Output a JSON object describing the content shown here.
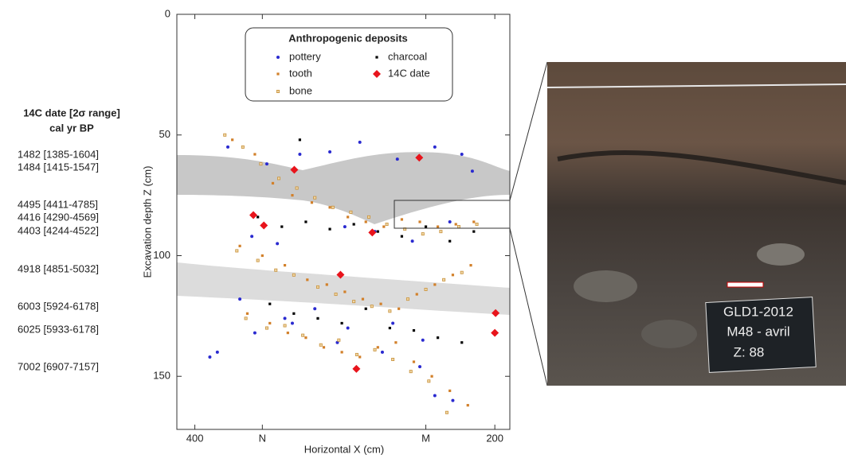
{
  "chart_data": {
    "type": "scatter",
    "legend_title": "Anthropogenic deposits",
    "xlabel": "Horizontal X (cm)",
    "ylabel": "Excavation depth Z (cm)",
    "xlim": [
      412,
      190
    ],
    "ylim": [
      172,
      0
    ],
    "xticks": [
      400,
      {
        "value": 355,
        "label": "N"
      },
      {
        "value": 246,
        "label": "M"
      },
      200
    ],
    "yticks": [
      0,
      50,
      100,
      150
    ],
    "series": [
      {
        "name": "pottery",
        "color": "#2a2ad0",
        "marker": "circle",
        "x": [
          378,
          352,
          330,
          310,
          290,
          265,
          240,
          222,
          215,
          362,
          345,
          300,
          280,
          255,
          230,
          370,
          340,
          320,
          298,
          268,
          248,
          385,
          360,
          335,
          305,
          275,
          250,
          228,
          390,
          240
        ],
        "values": [
          55,
          62,
          58,
          57,
          53,
          60,
          55,
          58,
          65,
          92,
          95,
          88,
          90,
          94,
          86,
          118,
          126,
          122,
          130,
          128,
          135,
          140,
          132,
          128,
          136,
          140,
          146,
          160,
          142,
          158
        ]
      },
      {
        "name": "charcoal",
        "color": "#000000",
        "marker": "square",
        "x": [
          358,
          342,
          326,
          310,
          294,
          278,
          262,
          246,
          230,
          214,
          350,
          334,
          318,
          302,
          286,
          270,
          254,
          238,
          222,
          330
        ],
        "values": [
          84,
          88,
          86,
          89,
          87,
          90,
          92,
          88,
          94,
          90,
          120,
          124,
          126,
          128,
          122,
          130,
          131,
          134,
          136,
          52
        ]
      },
      {
        "name": "tooth",
        "color": "#d2802a",
        "marker": "square",
        "x": [
          375,
          360,
          348,
          335,
          322,
          310,
          298,
          286,
          274,
          262,
          250,
          238,
          226,
          214,
          370,
          355,
          340,
          325,
          312,
          300,
          288,
          276,
          264,
          252,
          240,
          228,
          216,
          365,
          350,
          338,
          326,
          314,
          302,
          290,
          278,
          266,
          254,
          242,
          230,
          218
        ],
        "values": [
          52,
          58,
          70,
          75,
          78,
          80,
          84,
          86,
          88,
          85,
          86,
          88,
          87,
          86,
          96,
          100,
          104,
          110,
          112,
          115,
          118,
          120,
          122,
          116,
          112,
          108,
          104,
          124,
          128,
          132,
          134,
          138,
          140,
          142,
          138,
          136,
          144,
          150,
          156,
          162
        ]
      },
      {
        "name": "14C date",
        "color": "#e8141c",
        "marker": "diamond",
        "x": [
          333.7,
          250.4,
          361,
          354,
          281.7,
          302.9,
          199.5,
          200,
          292.3
        ],
        "values": [
          64.4,
          59.4,
          83.2,
          87.5,
          90.4,
          107.9,
          123.8,
          132,
          146.9
        ]
      },
      {
        "name": "bone",
        "color": "#c8913a",
        "marker": "hollow",
        "x": [
          380,
          368,
          356,
          344,
          332,
          320,
          308,
          296,
          284,
          272,
          260,
          248,
          236,
          224,
          212,
          372,
          358,
          346,
          334,
          318,
          306,
          294,
          282,
          270,
          258,
          246,
          234,
          222,
          366,
          352,
          340,
          328,
          316,
          304,
          292,
          280,
          268,
          256,
          244,
          232
        ],
        "values": [
          50,
          55,
          62,
          68,
          72,
          76,
          80,
          82,
          84,
          87,
          89,
          91,
          90,
          88,
          87,
          98,
          102,
          106,
          108,
          113,
          116,
          119,
          121,
          123,
          118,
          114,
          110,
          107,
          126,
          130,
          129,
          133,
          137,
          135,
          141,
          139,
          143,
          148,
          152,
          165
        ]
      }
    ]
  },
  "side_table": {
    "title": [
      "14C date [2σ range]",
      "cal yr BP"
    ],
    "entries": [
      "1482 [1385-1604]",
      "1484 [1415-1547]",
      "4495 [4411-4785]",
      "4416 [4290-4569]",
      "4403 [4244-4522]",
      "4918 [4851-5032]",
      "6003 [5924-6178]",
      "6025 [5933-6178]",
      "7002 [6907-7157]"
    ]
  },
  "photo": {
    "sign": [
      "GLD1-2012",
      "M48 - avril",
      "Z: 88"
    ]
  }
}
